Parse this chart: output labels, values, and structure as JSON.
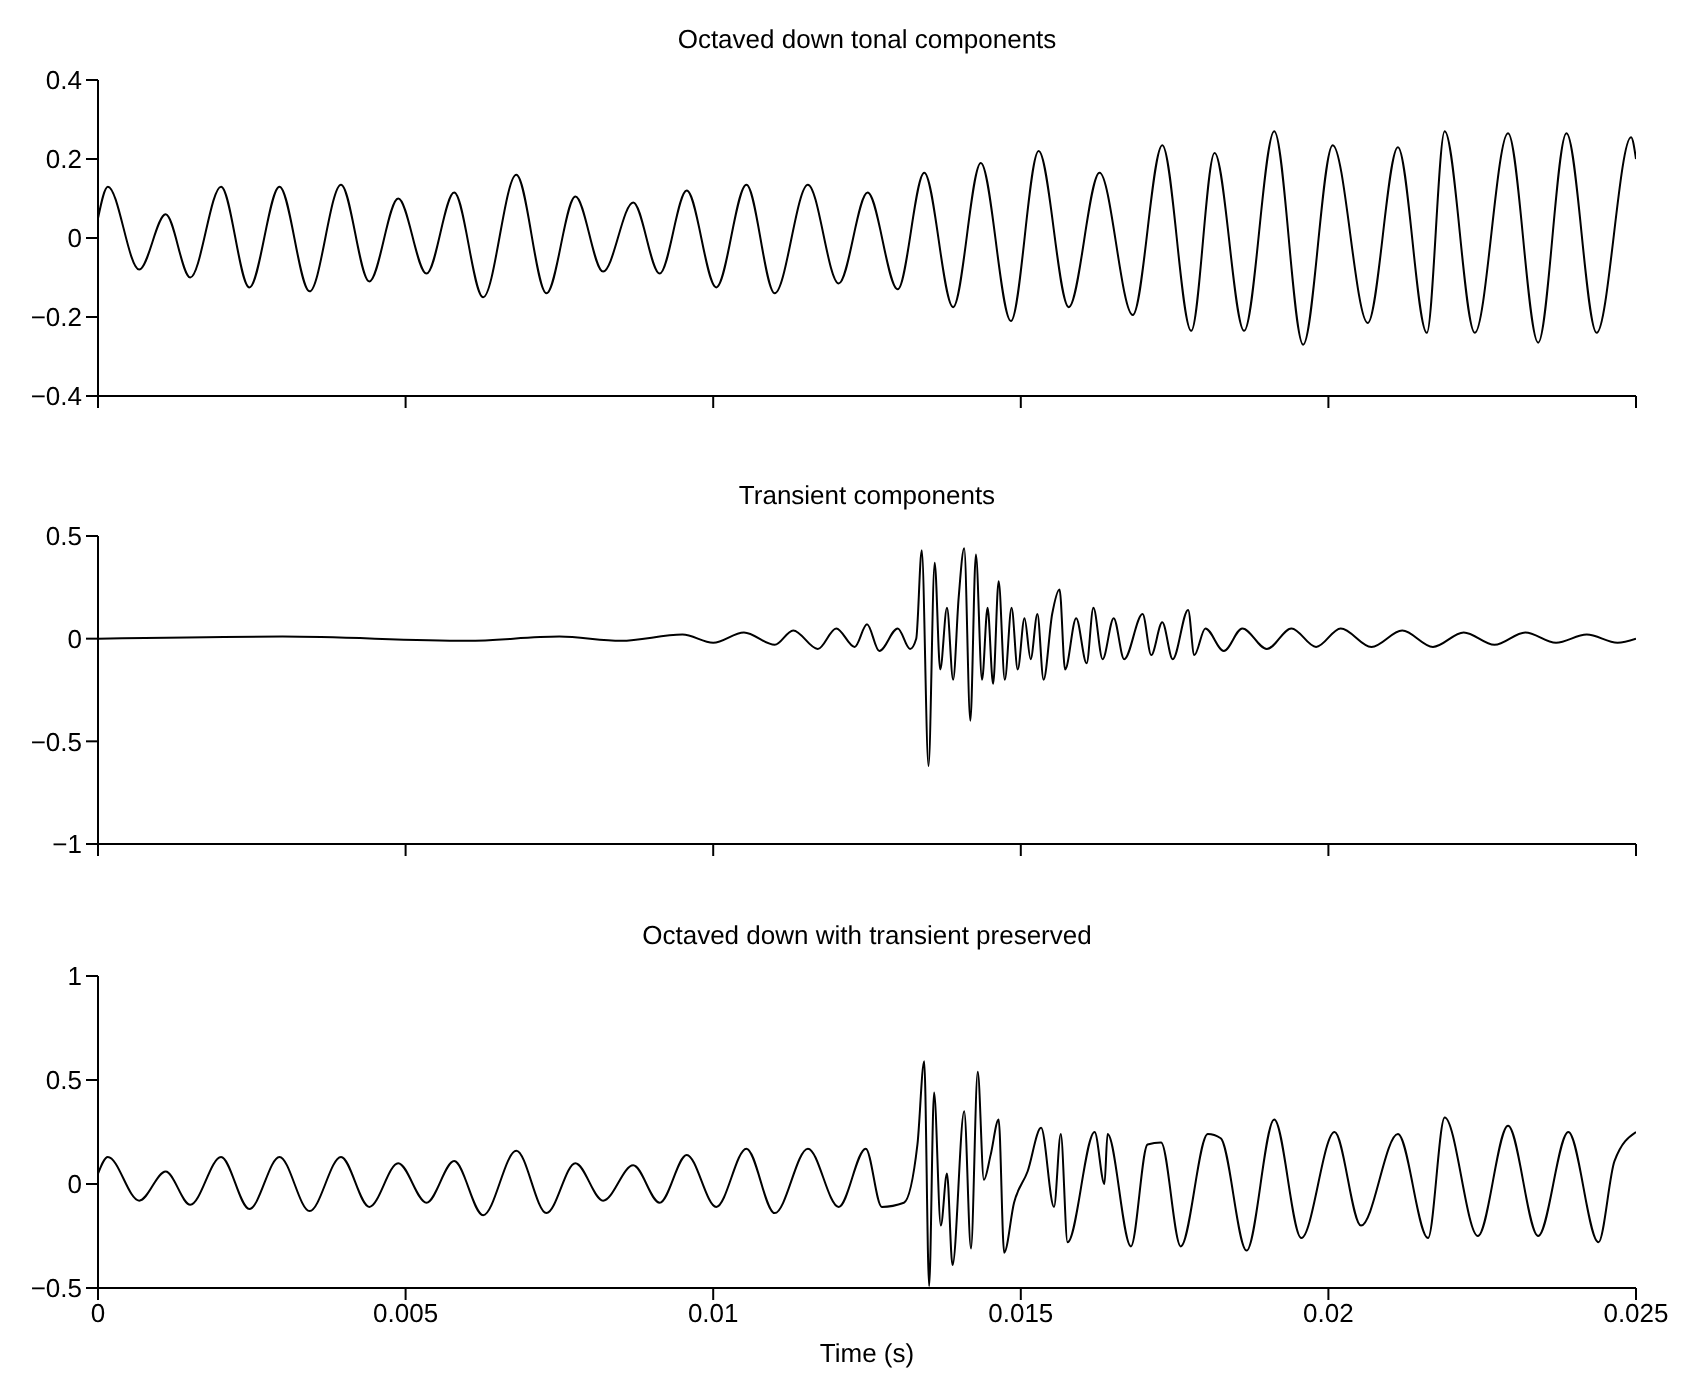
{
  "chart_data": [
    {
      "type": "line",
      "title": "Octaved down tonal components",
      "xlim": [
        0,
        0.025
      ],
      "xticks": [
        0,
        0.005,
        0.01,
        0.015,
        0.02,
        0.025
      ],
      "ylim": [
        -0.4,
        0.4
      ],
      "yticks": [
        -0.4,
        -0.2,
        0,
        0.2,
        0.4
      ],
      "tick_labels": "y",
      "series": [
        {
          "color": "#000000",
          "x": [
            0,
            0.00016,
            0.00067,
            0.0011,
            0.0015,
            0.002,
            0.00246,
            0.00295,
            0.00344,
            0.00395,
            0.00441,
            0.00488,
            0.00534,
            0.00579,
            0.00626,
            0.0068,
            0.00729,
            0.00776,
            0.00821,
            0.0087,
            0.00913,
            0.00957,
            0.01005,
            0.01054,
            0.011,
            0.01154,
            0.01204,
            0.01251,
            0.013,
            0.01343,
            0.0139,
            0.01435,
            0.01484,
            0.01529,
            0.01578,
            0.01628,
            0.01682,
            0.0173,
            0.01777,
            0.01815,
            0.01863,
            0.01912,
            0.01959,
            0.02007,
            0.02064,
            0.02113,
            0.0216,
            0.02189,
            0.02238,
            0.02292,
            0.02341,
            0.02387,
            0.02436,
            0.02492,
            0.025
          ],
          "values": [
            0.05,
            0.13,
            -0.08,
            0.06,
            -0.1,
            0.13,
            -0.125,
            0.13,
            -0.135,
            0.135,
            -0.11,
            0.1,
            -0.09,
            0.115,
            -0.15,
            0.16,
            -0.14,
            0.105,
            -0.085,
            0.09,
            -0.09,
            0.12,
            -0.125,
            0.135,
            -0.14,
            0.135,
            -0.115,
            0.115,
            -0.13,
            0.165,
            -0.175,
            0.19,
            -0.21,
            0.22,
            -0.175,
            0.165,
            -0.195,
            0.235,
            -0.235,
            0.215,
            -0.235,
            0.27,
            -0.27,
            0.235,
            -0.215,
            0.23,
            -0.24,
            0.27,
            -0.24,
            0.265,
            -0.265,
            0.265,
            -0.24,
            0.255,
            0.2
          ]
        }
      ]
    },
    {
      "type": "line",
      "title": "Transient components",
      "xlim": [
        0,
        0.025
      ],
      "xticks": [
        0,
        0.005,
        0.01,
        0.015,
        0.02,
        0.025
      ],
      "ylim": [
        -1,
        0.5
      ],
      "yticks": [
        -1,
        -0.5,
        0,
        0.5
      ],
      "tick_labels": "y",
      "series": [
        {
          "color": "#000000",
          "x": [
            0,
            0.003,
            0.006,
            0.0075,
            0.0085,
            0.0095,
            0.01,
            0.0105,
            0.011,
            0.0113,
            0.0117,
            0.012,
            0.0123,
            0.0125,
            0.0127,
            0.013,
            0.0132,
            0.0133,
            0.01339,
            0.0135,
            0.0136,
            0.01369,
            0.0138,
            0.0139,
            0.01399,
            0.01408,
            0.01418,
            0.01427,
            0.01437,
            0.01446,
            0.01455,
            0.01464,
            0.01474,
            0.01485,
            0.01495,
            0.01506,
            0.01516,
            0.01527,
            0.01537,
            0.01551,
            0.01563,
            0.01572,
            0.0159,
            0.01607,
            0.01618,
            0.01633,
            0.01651,
            0.01668,
            0.01698,
            0.01712,
            0.0173,
            0.01747,
            0.01772,
            0.01782,
            0.018,
            0.0183,
            0.0186,
            0.019,
            0.0194,
            0.0198,
            0.0202,
            0.0207,
            0.0212,
            0.0217,
            0.0222,
            0.0227,
            0.0232,
            0.0237,
            0.0242,
            0.0247,
            0.025
          ],
          "values": [
            0,
            0.01,
            -0.01,
            0.01,
            -0.01,
            0.02,
            -0.02,
            0.03,
            -0.03,
            0.04,
            -0.05,
            0.05,
            -0.04,
            0.07,
            -0.06,
            0.05,
            -0.05,
            0,
            0.43,
            -0.62,
            0.37,
            -0.15,
            0.15,
            -0.2,
            0.2,
            0.44,
            -0.4,
            0.41,
            -0.2,
            0.15,
            -0.22,
            0.28,
            -0.2,
            0.15,
            -0.15,
            0.1,
            -0.1,
            0.12,
            -0.2,
            0.12,
            0.24,
            -0.15,
            0.1,
            -0.12,
            0.15,
            -0.1,
            0.1,
            -0.1,
            0.12,
            -0.08,
            0.08,
            -0.1,
            0.14,
            -0.08,
            0.05,
            -0.06,
            0.05,
            -0.05,
            0.05,
            -0.04,
            0.05,
            -0.04,
            0.04,
            -0.04,
            0.03,
            -0.03,
            0.03,
            -0.02,
            0.02,
            -0.02,
            0
          ]
        }
      ]
    },
    {
      "type": "line",
      "title": "Octaved down with transient preserved",
      "xlabel": "Time (s)",
      "xlim": [
        0,
        0.025
      ],
      "xticks": [
        0,
        0.005,
        0.01,
        0.015,
        0.02,
        0.025
      ],
      "ylim": [
        -0.5,
        1
      ],
      "yticks": [
        -0.5,
        0,
        0.5,
        1
      ],
      "series": [
        {
          "color": "#000000",
          "x": [
            0,
            0.00016,
            0.00067,
            0.0011,
            0.0015,
            0.002,
            0.00246,
            0.00295,
            0.00344,
            0.00395,
            0.00441,
            0.00488,
            0.00534,
            0.00579,
            0.00626,
            0.0068,
            0.00729,
            0.00776,
            0.00821,
            0.0087,
            0.00913,
            0.00957,
            0.01005,
            0.01054,
            0.011,
            0.01154,
            0.01204,
            0.01248,
            0.01274,
            0.0131,
            0.01332,
            0.01343,
            0.01351,
            0.01359,
            0.0137,
            0.0138,
            0.01389,
            0.01408,
            0.01419,
            0.0143,
            0.0144,
            0.01451,
            0.01464,
            0.01473,
            0.01489,
            0.01511,
            0.01533,
            0.01554,
            0.01565,
            0.01576,
            0.0162,
            0.01636,
            0.01641,
            0.01679,
            0.01706,
            0.01728,
            0.0176,
            0.01804,
            0.01825,
            0.01867,
            0.01912,
            0.01956,
            0.0201,
            0.02053,
            0.02113,
            0.02162,
            0.02189,
            0.02243,
            0.02292,
            0.02341,
            0.0239,
            0.02439,
            0.02465,
            0.025
          ],
          "values": [
            0.05,
            0.13,
            -0.08,
            0.06,
            -0.1,
            0.13,
            -0.12,
            0.13,
            -0.13,
            0.13,
            -0.11,
            0.1,
            -0.09,
            0.11,
            -0.15,
            0.16,
            -0.14,
            0.1,
            -0.08,
            0.09,
            -0.09,
            0.14,
            -0.11,
            0.17,
            -0.14,
            0.17,
            -0.11,
            0.17,
            -0.11,
            -0.09,
            0.19,
            0.59,
            -0.49,
            0.44,
            -0.2,
            0.05,
            -0.39,
            0.35,
            -0.31,
            0.54,
            0.02,
            0.14,
            0.31,
            -0.33,
            -0.09,
            0.06,
            0.27,
            -0.11,
            0.24,
            -0.28,
            0.25,
            0,
            0.24,
            -0.3,
            0.19,
            0.2,
            -0.3,
            0.24,
            0.22,
            -0.32,
            0.31,
            -0.26,
            0.25,
            -0.2,
            0.24,
            -0.26,
            0.32,
            -0.25,
            0.28,
            -0.25,
            0.25,
            -0.28,
            0.11,
            0.25
          ]
        }
      ]
    }
  ]
}
